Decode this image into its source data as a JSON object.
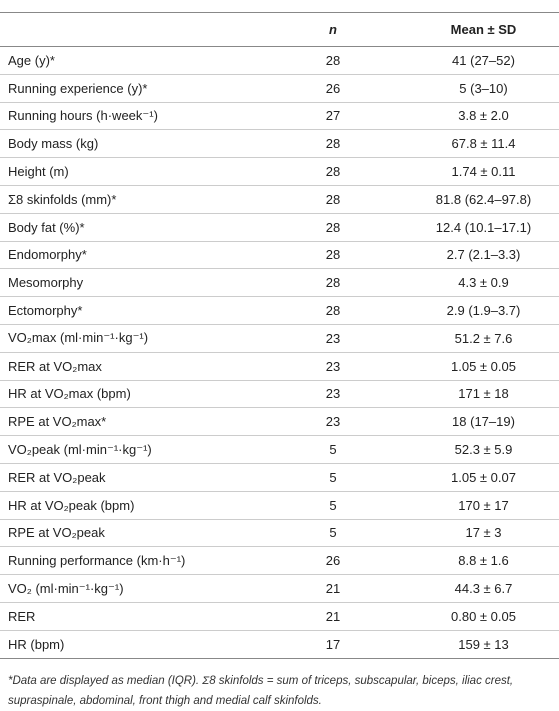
{
  "table": {
    "header": [
      "",
      "n",
      "Mean ± SD"
    ],
    "rows": [
      [
        "Age (y)*",
        28,
        "41 (27–52)"
      ],
      [
        "Running experience (y)*",
        26,
        "5 (3–10)"
      ],
      [
        "Running hours (h·week⁻¹)",
        27,
        "3.8 ± 2.0"
      ],
      [
        "Body mass (kg)",
        28,
        "67.8 ± 11.4"
      ],
      [
        "Height (m)",
        28,
        "1.74 ± 0.11"
      ],
      [
        "Σ8 skinfolds (mm)*",
        28,
        "81.8 (62.4–97.8)"
      ],
      [
        "Body fat (%)*",
        28,
        "12.4 (10.1–17.1)"
      ],
      [
        "Endomorphy*",
        28,
        "2.7 (2.1–3.3)"
      ],
      [
        "Mesomorphy",
        28,
        "4.3 ± 0.9"
      ],
      [
        "Ectomorphy*",
        28,
        "2.9 (1.9–3.7)"
      ],
      [
        "VO₂max (ml·min⁻¹·kg⁻¹)",
        23,
        "51.2 ± 7.6"
      ],
      [
        "RER at VO₂max",
        23,
        "1.05 ± 0.05"
      ],
      [
        "HR at VO₂max (bpm)",
        23,
        "171 ± 18"
      ],
      [
        "RPE at VO₂max*",
        23,
        "18 (17–19)"
      ],
      [
        "VO₂peak (ml·min⁻¹·kg⁻¹)",
        5,
        "52.3 ± 5.9"
      ],
      [
        "RER at VO₂peak",
        5,
        "1.05 ± 0.07"
      ],
      [
        "HR at VO₂peak (bpm)",
        5,
        "170 ± 17"
      ],
      [
        "RPE at VO₂peak",
        5,
        "17 ± 3"
      ],
      [
        "Running performance (km·h⁻¹)",
        26,
        "8.8 ± 1.6"
      ],
      [
        "VO₂ (ml·min⁻¹·kg⁻¹)",
        21,
        "44.3 ± 6.7"
      ],
      [
        "RER",
        21,
        "0.80 ± 0.05"
      ],
      [
        "HR (bpm)",
        17,
        "159 ± 13"
      ]
    ],
    "footnote": "*Data are displayed as median (IQR). Σ8 skinfolds = sum of triceps, subscapular, biceps, iliac crest, supraspinale, abdominal, front thigh and medial calf skinfolds."
  }
}
